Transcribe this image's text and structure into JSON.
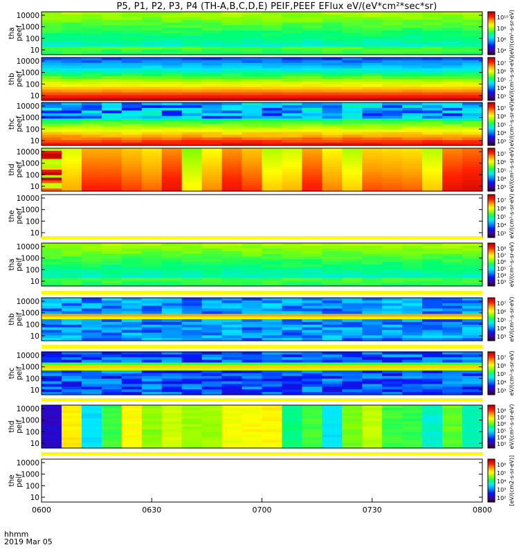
{
  "title": "P5, P1, P2, P3, P4 (TH-A,B,C,D,E) PEIF,PEEF EFlux eV/(eV*cm²*sec*sr)",
  "footer": {
    "time_label": "hhmm",
    "date_label": "2019 Mar 05"
  },
  "colors": {
    "separator_band": "#ffff00",
    "colormap": [
      "#2b0033",
      "#3c00b0",
      "#0018ff",
      "#0090ff",
      "#00e8ff",
      "#00ff70",
      "#8cff00",
      "#ffff00",
      "#ffa000",
      "#ff2000",
      "#c00000"
    ]
  },
  "chart_data": [
    {
      "type": "heatmap",
      "ylabel": "tha peef",
      "yticks": [
        "10000",
        "1000",
        "100",
        "10"
      ],
      "ylog": true,
      "pattern": "gradient_high_low",
      "colorbar": {
        "ticks": [
          "10¹⁰",
          "10⁸",
          "10⁶",
          "10⁴"
        ],
        "label": "(eV/(cm²-s-sr-eV)"
      }
    },
    {
      "type": "heatmap",
      "ylabel": "thb peef",
      "yticks": [
        "10000",
        "1000",
        "100",
        "10"
      ],
      "ylog": true,
      "pattern": "gradient_strong",
      "colorbar": {
        "ticks": [
          "10⁷",
          "10⁶",
          "10⁵",
          "10⁴",
          "10³"
        ],
        "label": "eV/(cm²-s-sr-eV)"
      }
    },
    {
      "type": "heatmap",
      "ylabel": "thc peef",
      "yticks": [
        "10000",
        "1000",
        "100",
        "10"
      ],
      "ylog": true,
      "pattern": "gradient_noisy",
      "colorbar": {
        "ticks": [
          "10⁷",
          "10⁶",
          "10⁵",
          "10⁴",
          "10³"
        ],
        "label": "eV/(cm²-s-sr-eV)"
      }
    },
    {
      "type": "heatmap",
      "ylabel": "thd peef",
      "yticks": [
        "10000",
        "1000",
        "100",
        "10"
      ],
      "ylog": true,
      "pattern": "columns_hot",
      "colorbar": {
        "ticks": [
          "10⁷",
          "10⁶",
          "10⁵",
          "10⁴",
          "10³"
        ],
        "label": "eV/(cm²-s-sr-eV)"
      }
    },
    {
      "type": "heatmap",
      "ylabel": "the peef",
      "yticks": [
        "10000",
        "1000",
        "100",
        "10"
      ],
      "ylog": true,
      "pattern": "empty",
      "colorbar": {
        "ticks": [
          "10⁷",
          "10⁶",
          "10⁵",
          "10⁴",
          "10³"
        ],
        "label": "eV/(cm²-s-sr-eV)"
      }
    },
    {
      "type": "heatmap",
      "ylabel": "tha peif",
      "yticks": [
        "10000",
        "1000",
        "100",
        "10"
      ],
      "ylog": true,
      "pattern": "gradient_high_low",
      "colorbar": {
        "ticks": [
          "10⁸",
          "10⁷",
          "10⁶",
          "10⁵",
          "10⁴",
          "10³"
        ],
        "label": "eV/(cm²-s-sr-eV)"
      }
    },
    {
      "type": "heatmap",
      "ylabel": "thb peif",
      "yticks": [
        "10000",
        "1000",
        "100",
        "10"
      ],
      "ylog": true,
      "pattern": "band_mid",
      "colorbar": {
        "ticks": [
          "10⁷",
          "10⁶",
          "10⁵",
          "10⁴",
          "10³"
        ],
        "label": "eV/(cm²-s-sr-eV)"
      }
    },
    {
      "type": "heatmap",
      "ylabel": "thc peif",
      "yticks": [
        "10000",
        "1000",
        "100",
        "10"
      ],
      "ylog": true,
      "pattern": "band_mid_dark",
      "colorbar": {
        "ticks": [
          "10⁷",
          "10⁶",
          "10⁵",
          "10⁴",
          "10³"
        ],
        "label": "eV/(cm²-s-sr-eV)"
      }
    },
    {
      "type": "heatmap",
      "ylabel": "thd peif",
      "yticks": [
        "10000",
        "1000",
        "100",
        "10"
      ],
      "ylog": true,
      "pattern": "columns_cool",
      "colorbar": {
        "ticks": [
          "10⁸",
          "10⁷",
          "10⁶",
          "10⁵",
          "10⁴",
          "10³"
        ],
        "label": "eV/(cm²-s-sr-eV)"
      }
    },
    {
      "type": "heatmap",
      "ylabel": "the peif",
      "yticks": [
        "10000",
        "1000",
        "100",
        "10"
      ],
      "ylog": true,
      "pattern": "empty",
      "colorbar": {
        "ticks": [
          "10⁶",
          "10⁵",
          "10⁴",
          "10³",
          "10²"
        ],
        "label": "[eV/(cm2-s-sr-eV)]"
      }
    }
  ],
  "xaxis": {
    "ticks": [
      "0600",
      "0630",
      "0700",
      "0730",
      "0800"
    ]
  },
  "separator_bands_after_panels": [
    5,
    6,
    7,
    8,
    9
  ]
}
